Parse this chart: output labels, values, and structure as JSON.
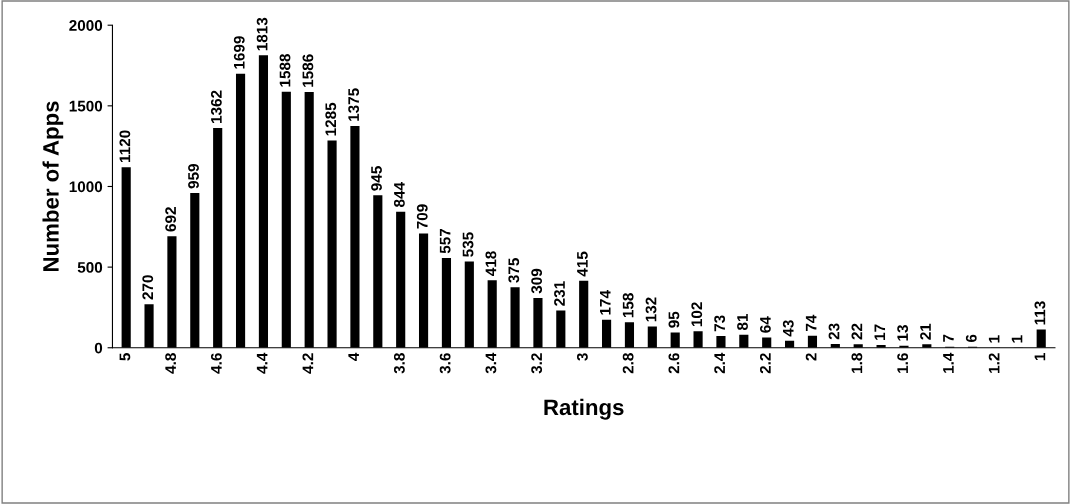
{
  "chart_data": {
    "type": "bar",
    "xlabel": "Ratings",
    "ylabel": "Number of Apps",
    "categories": [
      "5",
      null,
      "4.8",
      null,
      "4.6",
      null,
      "4.4",
      null,
      "4.2",
      null,
      "4",
      null,
      "3.8",
      null,
      "3.6",
      null,
      "3.4",
      null,
      "3.2",
      null,
      "3",
      null,
      "2.8",
      null,
      "2.6",
      null,
      "2.4",
      null,
      "2.2",
      null,
      "2",
      null,
      "1.8",
      null,
      "1.6",
      null,
      "1.4",
      null,
      "1.2",
      null,
      "1"
    ],
    "values": [
      1120,
      270,
      692,
      959,
      1362,
      1699,
      1813,
      1588,
      1586,
      1285,
      1375,
      945,
      844,
      709,
      557,
      535,
      418,
      375,
      309,
      231,
      415,
      174,
      158,
      132,
      95,
      102,
      73,
      81,
      64,
      43,
      74,
      23,
      22,
      17,
      13,
      21,
      7,
      6,
      1,
      1,
      113
    ],
    "color": "#000000",
    "ylim": [
      0,
      2000
    ],
    "yticks": [
      0,
      500,
      1000,
      1500,
      2000
    ],
    "grid": false,
    "data_labels": true
  }
}
